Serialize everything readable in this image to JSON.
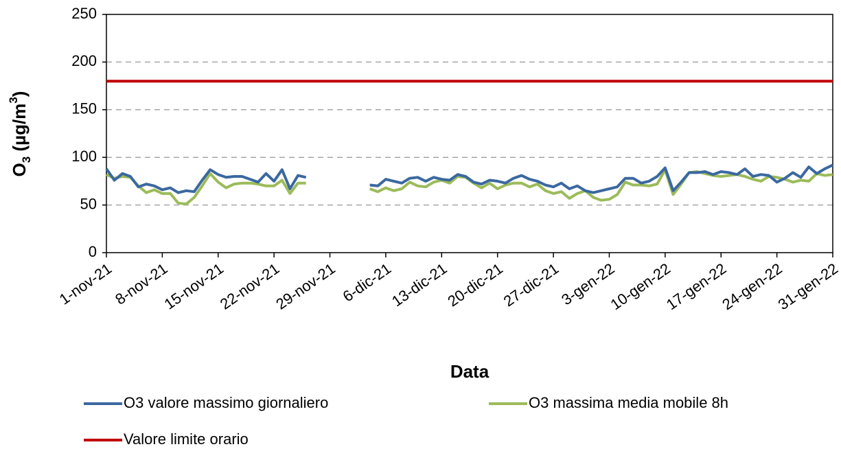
{
  "chart_data": {
    "type": "line",
    "x_label": "Data",
    "y_label": "O3 (µg/m3)",
    "categories": [
      "1-nov-21",
      null,
      null,
      null,
      null,
      null,
      null,
      "8-nov-21",
      null,
      null,
      null,
      null,
      null,
      null,
      "15-nov-21",
      null,
      null,
      null,
      null,
      null,
      null,
      "22-nov-21",
      null,
      null,
      null,
      null,
      null,
      null,
      "29-nov-21",
      null,
      null,
      null,
      null,
      null,
      null,
      "6-dic-21",
      null,
      null,
      null,
      null,
      null,
      null,
      "13-dic-21",
      null,
      null,
      null,
      null,
      null,
      null,
      "20-dic-21",
      null,
      null,
      null,
      null,
      null,
      null,
      "27-dic-21",
      null,
      null,
      null,
      null,
      null,
      null,
      "3-gen-22",
      null,
      null,
      null,
      null,
      null,
      null,
      "10-gen-22",
      null,
      null,
      null,
      null,
      null,
      null,
      "17-gen-22",
      null,
      null,
      null,
      null,
      null,
      null,
      "24-gen-22",
      null,
      null,
      null,
      null,
      null,
      null,
      "31-gen-22"
    ],
    "series": [
      {
        "name": "O3 valore massimo giornaliero",
        "color": "#3b68a0",
        "values": [
          88,
          76,
          83,
          80,
          69,
          72,
          70,
          66,
          68,
          63,
          65,
          64,
          76,
          87,
          82,
          79,
          80,
          80,
          77,
          74,
          83,
          75,
          87,
          67,
          81,
          79,
          null,
          null,
          null,
          null,
          null,
          null,
          null,
          71,
          70,
          77,
          75,
          73,
          78,
          79,
          75,
          79,
          77,
          76,
          82,
          80,
          74,
          72,
          76,
          75,
          73,
          78,
          81,
          77,
          75,
          71,
          69,
          73,
          67,
          70,
          65,
          63,
          65,
          67,
          69,
          78,
          78,
          73,
          75,
          80,
          89,
          65,
          74,
          84,
          84,
          85,
          82,
          85,
          84,
          82,
          88,
          80,
          82,
          81,
          74,
          78,
          84,
          79,
          90,
          83,
          88,
          92
        ]
      },
      {
        "name": "O3 massima media mobile 8h",
        "color": "#9bbb59",
        "values": [
          82,
          78,
          80,
          79,
          70,
          63,
          66,
          62,
          62,
          52,
          51,
          58,
          70,
          83,
          74,
          68,
          72,
          73,
          73,
          72,
          70,
          70,
          76,
          62,
          73,
          73,
          null,
          null,
          null,
          null,
          null,
          null,
          null,
          67,
          64,
          68,
          65,
          67,
          74,
          70,
          69,
          74,
          76,
          73,
          80,
          79,
          73,
          68,
          73,
          67,
          71,
          73,
          73,
          69,
          72,
          65,
          62,
          64,
          57,
          62,
          65,
          58,
          55,
          56,
          61,
          74,
          71,
          71,
          70,
          72,
          87,
          61,
          72,
          84,
          85,
          83,
          81,
          80,
          81,
          82,
          80,
          77,
          75,
          80,
          79,
          77,
          74,
          76,
          75,
          83,
          81,
          82
        ]
      },
      {
        "name": "Valore limite orario",
        "color": "#c00000",
        "values": [
          180,
          180,
          180,
          180,
          180,
          180,
          180,
          180,
          180,
          180,
          180,
          180,
          180,
          180,
          180,
          180,
          180,
          180,
          180,
          180,
          180,
          180,
          180,
          180,
          180,
          180,
          180,
          180,
          180,
          180,
          180,
          180,
          180,
          180,
          180,
          180,
          180,
          180,
          180,
          180,
          180,
          180,
          180,
          180,
          180,
          180,
          180,
          180,
          180,
          180,
          180,
          180,
          180,
          180,
          180,
          180,
          180,
          180,
          180,
          180,
          180,
          180,
          180,
          180,
          180,
          180,
          180,
          180,
          180,
          180,
          180,
          180,
          180,
          180,
          180,
          180,
          180,
          180,
          180,
          180,
          180,
          180,
          180,
          180,
          180,
          180,
          180,
          180,
          180,
          180,
          180,
          180
        ]
      }
    ],
    "ylim": [
      0,
      250
    ],
    "yticks": [
      0,
      50,
      100,
      150,
      200,
      250
    ],
    "grid": true
  }
}
